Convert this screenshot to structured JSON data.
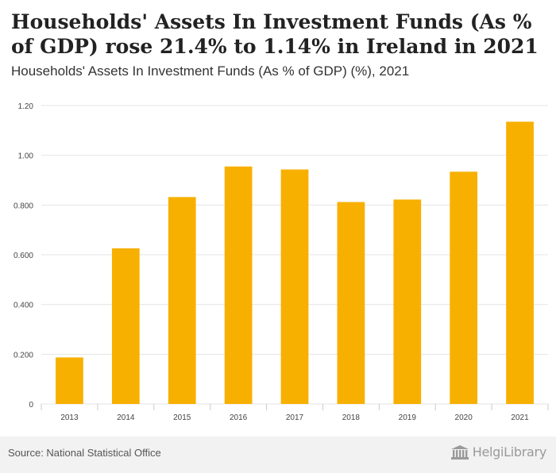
{
  "header": {
    "title": "Households' Assets In Investment Funds (As % of GDP) rose 21.4% to 1.14% in Ireland in 2021",
    "subtitle": "Households' Assets In Investment Funds (As % of GDP) (%), 2021"
  },
  "footer": {
    "source": "Source: National Statistical Office",
    "logo_text": "HelgiLibrary"
  },
  "colors": {
    "bar": "#f7b000",
    "grid": "#e4e4e4",
    "axis_text": "#444444"
  },
  "chart_data": {
    "type": "bar",
    "title": "Households' Assets In Investment Funds (As % of GDP) (%), 2021",
    "xlabel": "",
    "ylabel": "",
    "categories": [
      "2013",
      "2014",
      "2015",
      "2016",
      "2017",
      "2018",
      "2019",
      "2020",
      "2021"
    ],
    "values": [
      0.187,
      0.626,
      0.832,
      0.955,
      0.943,
      0.812,
      0.822,
      0.934,
      1.135
    ],
    "ylim": [
      0,
      1.2
    ],
    "yticks": [
      0,
      0.2,
      0.4,
      0.6,
      0.8,
      1.0,
      1.2
    ],
    "ytick_labels": [
      "0",
      "0.200",
      "0.400",
      "0.600",
      "0.800",
      "1.00",
      "1.20"
    ],
    "grid": true
  }
}
